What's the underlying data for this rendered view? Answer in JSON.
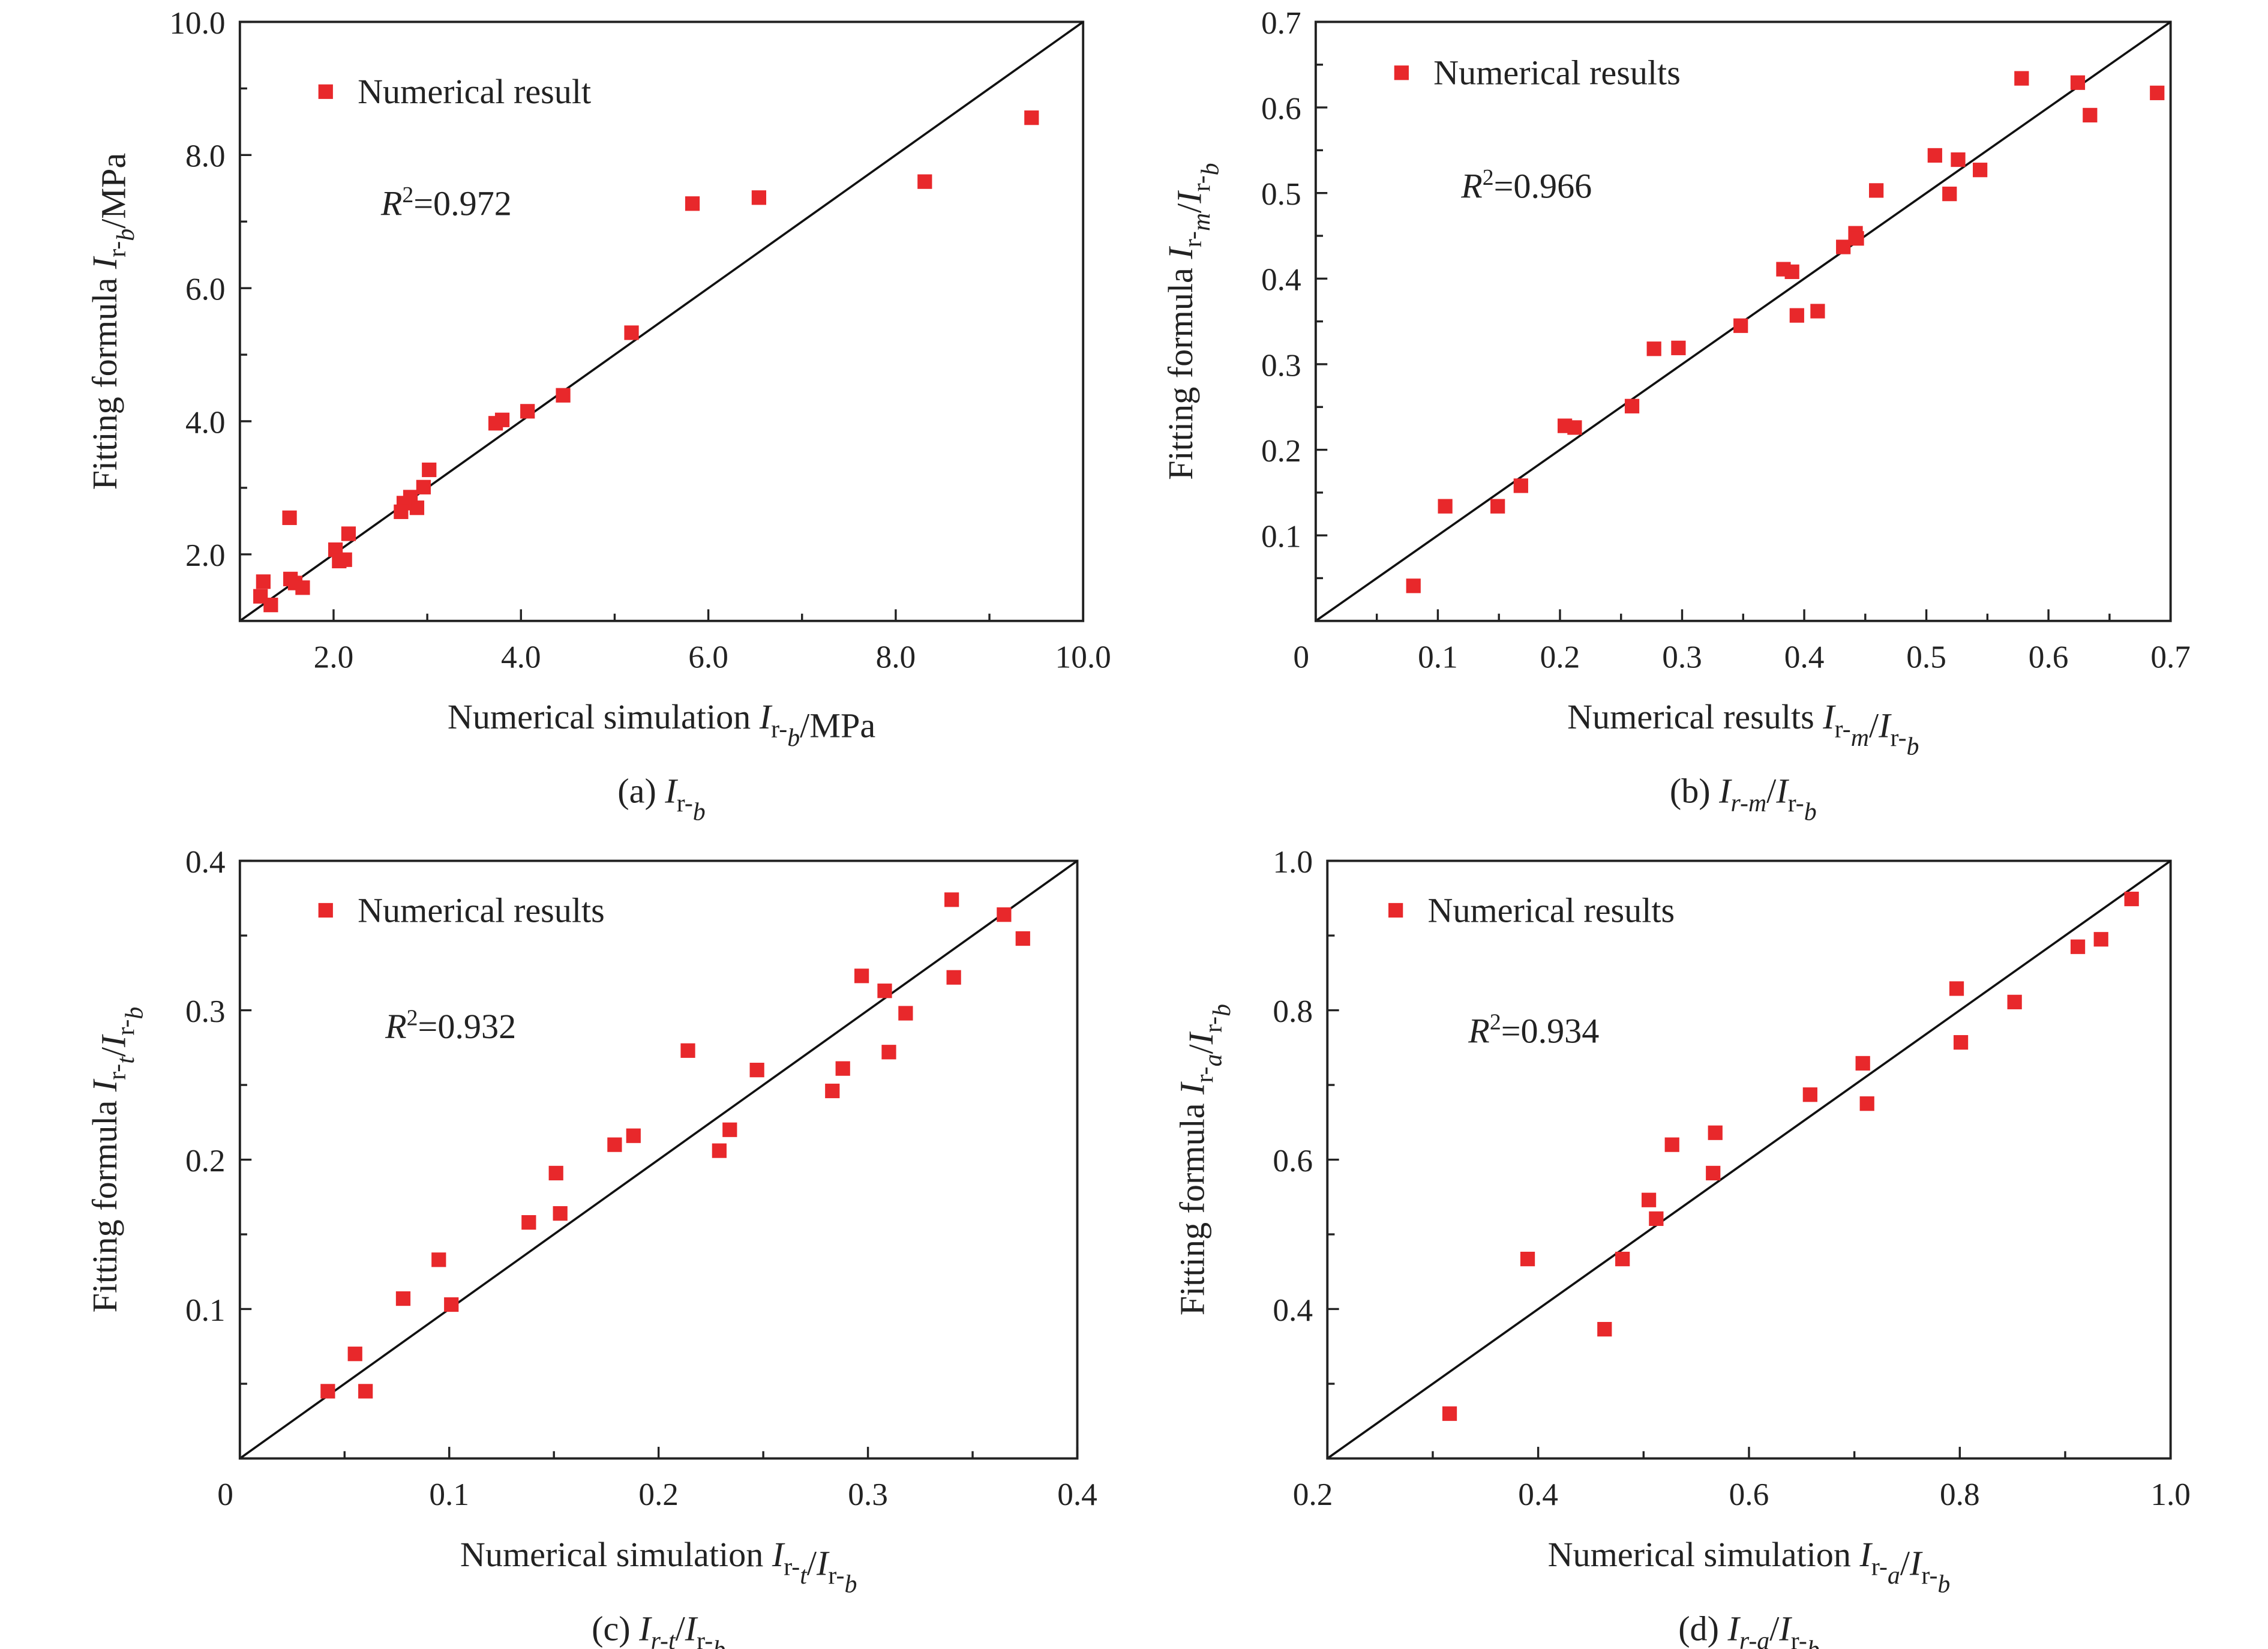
{
  "marker_color": "#e8282b",
  "chart_data": [
    {
      "type": "scatter",
      "caption": [
        {
          "t": "(a) "
        },
        {
          "t": "I",
          "i": 1
        },
        {
          "t": "r-",
          "s": 1
        },
        {
          "t": "b",
          "s": 1,
          "i": 1
        }
      ],
      "xlabel": [
        {
          "t": "Numerical simulation "
        },
        {
          "t": "I",
          "i": 1
        },
        {
          "t": "r-",
          "s": 1
        },
        {
          "t": "b",
          "s": 1,
          "i": 1
        },
        {
          "t": "/MPa"
        }
      ],
      "ylabel": [
        {
          "t": "Fitting formula "
        },
        {
          "t": "I",
          "i": 1
        },
        {
          "t": "r-",
          "s": 1
        },
        {
          "t": "b",
          "s": 1,
          "i": 1
        },
        {
          "t": "/MPa"
        }
      ],
      "legend": "Numerical result",
      "r2": "0.972",
      "xlim": [
        1,
        10
      ],
      "ylim": [
        1,
        10
      ],
      "xticks": [
        {
          "v": 2,
          "l": "2.0"
        },
        {
          "v": 4,
          "l": "4.0"
        },
        {
          "v": 6,
          "l": "6.0"
        },
        {
          "v": 8,
          "l": "8.0"
        },
        {
          "v": 10,
          "l": "10.0"
        }
      ],
      "yticks": [
        {
          "v": 2,
          "l": "2.0"
        },
        {
          "v": 4,
          "l": "4.0"
        },
        {
          "v": 6,
          "l": "6.0"
        },
        {
          "v": 8,
          "l": "8.0"
        },
        {
          "v": 10,
          "l": "10.0"
        }
      ],
      "origin_label": "",
      "reference_line": "y = x",
      "points": [
        [
          9.45,
          8.56
        ],
        [
          8.31,
          7.6
        ],
        [
          6.54,
          7.36
        ],
        [
          5.83,
          7.27
        ],
        [
          5.18,
          5.33
        ],
        [
          4.45,
          4.39
        ],
        [
          4.07,
          4.15
        ],
        [
          3.8,
          4.02
        ],
        [
          3.73,
          3.97
        ],
        [
          3.02,
          3.27
        ],
        [
          2.96,
          3.01
        ],
        [
          2.89,
          2.7
        ],
        [
          2.82,
          2.86
        ],
        [
          2.75,
          2.77
        ],
        [
          2.72,
          2.64
        ],
        [
          2.16,
          2.31
        ],
        [
          2.02,
          2.07
        ],
        [
          2.12,
          1.92
        ],
        [
          2.06,
          1.9
        ],
        [
          1.53,
          2.55
        ],
        [
          1.54,
          1.63
        ],
        [
          1.59,
          1.57
        ],
        [
          1.67,
          1.5
        ],
        [
          1.25,
          1.59
        ],
        [
          1.22,
          1.37
        ],
        [
          1.33,
          1.24
        ]
      ]
    },
    {
      "type": "scatter",
      "caption": [
        {
          "t": "(b) "
        },
        {
          "t": "I",
          "i": 1
        },
        {
          "t": "r-m",
          "s": 1,
          "i": 1
        },
        {
          "t": "/"
        },
        {
          "t": "I",
          "i": 1
        },
        {
          "t": "r-",
          "s": 1
        },
        {
          "t": "b",
          "s": 1,
          "i": 1
        }
      ],
      "xlabel": [
        {
          "t": "Numerical results "
        },
        {
          "t": "I",
          "i": 1
        },
        {
          "t": "r-",
          "s": 1
        },
        {
          "t": "m",
          "s": 1,
          "i": 1
        },
        {
          "t": "/"
        },
        {
          "t": "I",
          "i": 1
        },
        {
          "t": "r-",
          "s": 1
        },
        {
          "t": "b",
          "s": 1,
          "i": 1
        }
      ],
      "ylabel": [
        {
          "t": "Fitting formula "
        },
        {
          "t": "I",
          "i": 1
        },
        {
          "t": "r-",
          "s": 1
        },
        {
          "t": "m",
          "s": 1,
          "i": 1
        },
        {
          "t": "/"
        },
        {
          "t": "I",
          "i": 1
        },
        {
          "t": "r-",
          "s": 1
        },
        {
          "t": "b",
          "s": 1,
          "i": 1
        }
      ],
      "legend": "Numerical results",
      "r2": "0.966",
      "xlim": [
        0,
        0.7
      ],
      "ylim": [
        0,
        0.7
      ],
      "xticks": [
        {
          "v": 0.1,
          "l": "0.1"
        },
        {
          "v": 0.2,
          "l": "0.2"
        },
        {
          "v": 0.3,
          "l": "0.3"
        },
        {
          "v": 0.4,
          "l": "0.4"
        },
        {
          "v": 0.5,
          "l": "0.5"
        },
        {
          "v": 0.6,
          "l": "0.6"
        },
        {
          "v": 0.7,
          "l": "0.7"
        }
      ],
      "yticks": [
        {
          "v": 0.1,
          "l": "0.1"
        },
        {
          "v": 0.2,
          "l": "0.2"
        },
        {
          "v": 0.3,
          "l": "0.3"
        },
        {
          "v": 0.4,
          "l": "0.4"
        },
        {
          "v": 0.5,
          "l": "0.5"
        },
        {
          "v": 0.6,
          "l": "0.6"
        },
        {
          "v": 0.7,
          "l": "0.7"
        }
      ],
      "origin_label": "0",
      "reference_line": "y = x",
      "points": [
        [
          0.689,
          0.617
        ],
        [
          0.634,
          0.591
        ],
        [
          0.624,
          0.629
        ],
        [
          0.578,
          0.634
        ],
        [
          0.544,
          0.527
        ],
        [
          0.526,
          0.539
        ],
        [
          0.519,
          0.499
        ],
        [
          0.507,
          0.544
        ],
        [
          0.459,
          0.503
        ],
        [
          0.442,
          0.453
        ],
        [
          0.443,
          0.447
        ],
        [
          0.432,
          0.437
        ],
        [
          0.411,
          0.362
        ],
        [
          0.394,
          0.357
        ],
        [
          0.39,
          0.408
        ],
        [
          0.383,
          0.411
        ],
        [
          0.348,
          0.345
        ],
        [
          0.297,
          0.319
        ],
        [
          0.277,
          0.318
        ],
        [
          0.259,
          0.251
        ],
        [
          0.212,
          0.226
        ],
        [
          0.204,
          0.228
        ],
        [
          0.168,
          0.158
        ],
        [
          0.149,
          0.134
        ],
        [
          0.106,
          0.134
        ],
        [
          0.08,
          0.041
        ]
      ]
    },
    {
      "type": "scatter",
      "caption": [
        {
          "t": "(c) "
        },
        {
          "t": "I",
          "i": 1
        },
        {
          "t": "r-t",
          "s": 1,
          "i": 1
        },
        {
          "t": "/"
        },
        {
          "t": "I",
          "i": 1
        },
        {
          "t": "r-",
          "s": 1
        },
        {
          "t": "b",
          "s": 1,
          "i": 1
        }
      ],
      "xlabel": [
        {
          "t": "Numerical simulation "
        },
        {
          "t": "I",
          "i": 1
        },
        {
          "t": "r-",
          "s": 1
        },
        {
          "t": "t",
          "s": 1,
          "i": 1
        },
        {
          "t": "/"
        },
        {
          "t": "I",
          "i": 1
        },
        {
          "t": "r-",
          "s": 1
        },
        {
          "t": "b",
          "s": 1,
          "i": 1
        }
      ],
      "ylabel": [
        {
          "t": "Fitting formula "
        },
        {
          "t": "I",
          "i": 1
        },
        {
          "t": "r-",
          "s": 1
        },
        {
          "t": "t",
          "s": 1,
          "i": 1
        },
        {
          "t": "/"
        },
        {
          "t": "I",
          "i": 1
        },
        {
          "t": "r-",
          "s": 1
        },
        {
          "t": "b",
          "s": 1,
          "i": 1
        }
      ],
      "legend": "Numerical results",
      "r2": "0.932",
      "xlim": [
        0,
        0.4
      ],
      "ylim": [
        0,
        0.4
      ],
      "xticks": [
        {
          "v": 0.1,
          "l": "0.1"
        },
        {
          "v": 0.2,
          "l": "0.2"
        },
        {
          "v": 0.3,
          "l": "0.3"
        },
        {
          "v": 0.4,
          "l": "0.4"
        }
      ],
      "yticks": [
        {
          "v": 0.1,
          "l": "0.1"
        },
        {
          "v": 0.2,
          "l": "0.2"
        },
        {
          "v": 0.3,
          "l": "0.3"
        },
        {
          "v": 0.4,
          "l": "0.4"
        }
      ],
      "origin_label": "0",
      "reference_line": "y = x",
      "points": [
        [
          0.365,
          0.364
        ],
        [
          0.374,
          0.348
        ],
        [
          0.34,
          0.374
        ],
        [
          0.341,
          0.322
        ],
        [
          0.297,
          0.323
        ],
        [
          0.308,
          0.313
        ],
        [
          0.318,
          0.298
        ],
        [
          0.31,
          0.272
        ],
        [
          0.288,
          0.261
        ],
        [
          0.283,
          0.246
        ],
        [
          0.247,
          0.26
        ],
        [
          0.214,
          0.273
        ],
        [
          0.234,
          0.22
        ],
        [
          0.229,
          0.206
        ],
        [
          0.188,
          0.216
        ],
        [
          0.179,
          0.21
        ],
        [
          0.151,
          0.191
        ],
        [
          0.153,
          0.164
        ],
        [
          0.138,
          0.158
        ],
        [
          0.095,
          0.133
        ],
        [
          0.078,
          0.107
        ],
        [
          0.101,
          0.103
        ],
        [
          0.055,
          0.07
        ],
        [
          0.06,
          0.045
        ],
        [
          0.042,
          0.045
        ]
      ]
    },
    {
      "type": "scatter",
      "caption": [
        {
          "t": "(d) "
        },
        {
          "t": "I",
          "i": 1
        },
        {
          "t": "r-a",
          "s": 1,
          "i": 1
        },
        {
          "t": "/"
        },
        {
          "t": "I",
          "i": 1
        },
        {
          "t": "r-",
          "s": 1
        },
        {
          "t": "b",
          "s": 1,
          "i": 1
        }
      ],
      "xlabel": [
        {
          "t": "Numerical simulation "
        },
        {
          "t": "I",
          "i": 1
        },
        {
          "t": "r-",
          "s": 1
        },
        {
          "t": "a",
          "s": 1,
          "i": 1
        },
        {
          "t": "/"
        },
        {
          "t": "I",
          "i": 1
        },
        {
          "t": "r-",
          "s": 1
        },
        {
          "t": "b",
          "s": 1,
          "i": 1
        }
      ],
      "ylabel": [
        {
          "t": "Fitting formula "
        },
        {
          "t": "I",
          "i": 1
        },
        {
          "t": "r-",
          "s": 1
        },
        {
          "t": "a",
          "s": 1,
          "i": 1
        },
        {
          "t": "/"
        },
        {
          "t": "I",
          "i": 1
        },
        {
          "t": "r-",
          "s": 1
        },
        {
          "t": "b",
          "s": 1,
          "i": 1
        }
      ],
      "legend": "Numerical results",
      "r2": "0.934",
      "xlim": [
        0.2,
        1.0
      ],
      "ylim": [
        0.2,
        1.0
      ],
      "xticks": [
        {
          "v": 0.4,
          "l": "0.4"
        },
        {
          "v": 0.6,
          "l": "0.6"
        },
        {
          "v": 0.8,
          "l": "0.8"
        },
        {
          "v": 1.0,
          "l": "1.0"
        }
      ],
      "yticks": [
        {
          "v": 0.4,
          "l": "0.4"
        },
        {
          "v": 0.6,
          "l": "0.6"
        },
        {
          "v": 0.8,
          "l": "0.8"
        },
        {
          "v": 1.0,
          "l": "1.0"
        }
      ],
      "origin_label": "0.2",
      "reference_line": "y = x",
      "points": [
        [
          0.963,
          0.949
        ],
        [
          0.934,
          0.895
        ],
        [
          0.912,
          0.885
        ],
        [
          0.852,
          0.811
        ],
        [
          0.797,
          0.829
        ],
        [
          0.801,
          0.757
        ],
        [
          0.708,
          0.729
        ],
        [
          0.712,
          0.675
        ],
        [
          0.658,
          0.687
        ],
        [
          0.568,
          0.636
        ],
        [
          0.566,
          0.582
        ],
        [
          0.527,
          0.62
        ],
        [
          0.505,
          0.546
        ],
        [
          0.512,
          0.521
        ],
        [
          0.48,
          0.467
        ],
        [
          0.463,
          0.373
        ],
        [
          0.39,
          0.467
        ],
        [
          0.316,
          0.26
        ]
      ]
    }
  ]
}
